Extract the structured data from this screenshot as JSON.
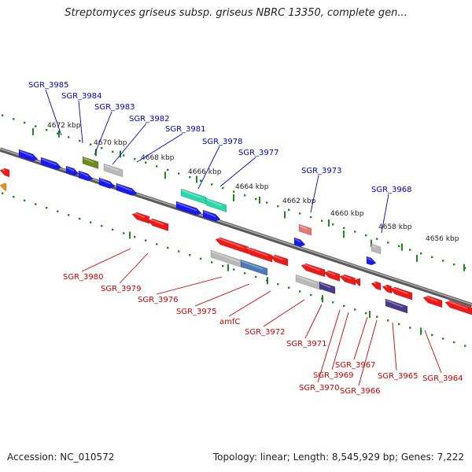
{
  "title": "Streptomyces griseus subsp. griseus NBRC 13350, complete gen...",
  "footer": {
    "accession": "Accession: NC_010572",
    "summary": "Topology: linear; Length: 8,545,929 bp; Genes: 7,222"
  },
  "colors": {
    "forward_strand_label": "#0000cc",
    "reverse_strand_label": "#cc0000",
    "tick": "#1a8a1a",
    "backbone": "#808080"
  },
  "kbp_ticks": [
    "4672 kbp",
    "4670 kbp",
    "4668 kbp",
    "4666 kbp",
    "4664 kbp",
    "4662 kbp",
    "4660 kbp",
    "4658 kbp",
    "4656 kbp"
  ],
  "forward_genes": [
    "SGR_3985",
    "SGR_3984",
    "SGR_3983",
    "SGR_3982",
    "SGR_3981",
    "SGR_3978",
    "SGR_3977",
    "SGR_3973",
    "SGR_3968"
  ],
  "reverse_genes": [
    "SGR_3980",
    "SGR_3979",
    "SGR_3976",
    "SGR_3975",
    "amfC",
    "SGR_3972",
    "SGR_3971",
    "SGR_3970",
    "SGR_3969",
    "SGR_3967",
    "SGR_3966",
    "SGR_3965",
    "SGR_3964"
  ]
}
